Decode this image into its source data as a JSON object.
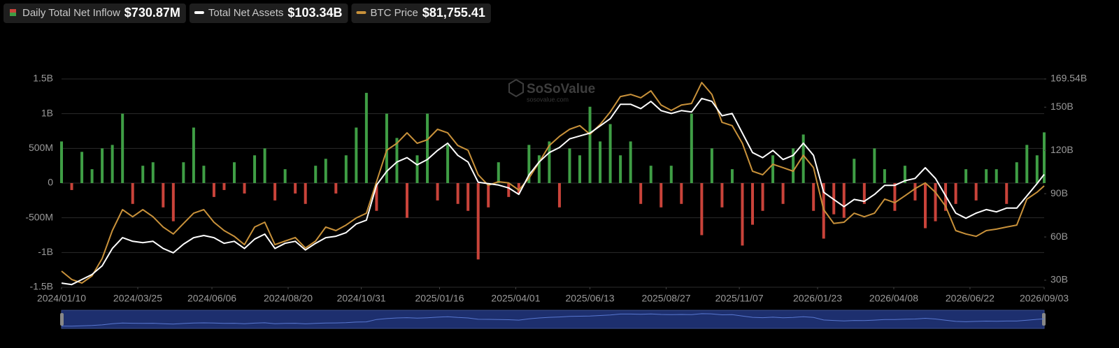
{
  "chart_data": {
    "type": "combo",
    "watermark": {
      "name": "SoSoValue",
      "site": "sosovalue.com"
    },
    "x": [
      "2024/01/10",
      "2024/01/20",
      "2024/01/30",
      "2024/02/09",
      "2024/02/19",
      "2024/02/29",
      "2024/03/10",
      "2024/03/20",
      "2024/03/30",
      "2024/04/09",
      "2024/04/19",
      "2024/04/29",
      "2024/05/09",
      "2024/05/19",
      "2024/05/29",
      "2024/06/08",
      "2024/06/18",
      "2024/06/28",
      "2024/07/08",
      "2024/07/18",
      "2024/07/28",
      "2024/08/07",
      "2024/08/17",
      "2024/08/27",
      "2024/09/06",
      "2024/09/16",
      "2024/09/26",
      "2024/10/06",
      "2024/10/16",
      "2024/10/26",
      "2024/11/05",
      "2024/11/15",
      "2024/11/25",
      "2024/12/05",
      "2024/12/15",
      "2024/12/25",
      "2025/01/04",
      "2025/01/14",
      "2025/01/24",
      "2025/02/03",
      "2025/02/13",
      "2025/02/23",
      "2025/03/05",
      "2025/03/15",
      "2025/03/25",
      "2025/04/04",
      "2025/04/14",
      "2025/04/24",
      "2025/05/04",
      "2025/05/14",
      "2025/05/24",
      "2025/06/03",
      "2025/06/13",
      "2025/06/23",
      "2025/07/03",
      "2025/07/13",
      "2025/07/23",
      "2025/08/02",
      "2025/08/12",
      "2025/08/22",
      "2025/09/01",
      "2025/09/11",
      "2025/09/21",
      "2025/10/01",
      "2025/10/11",
      "2025/10/21",
      "2025/10/31",
      "2025/11/10",
      "2025/11/20",
      "2025/11/30",
      "2025/12/10",
      "2025/12/20",
      "2025/12/30",
      "2026/01/09",
      "2026/01/19",
      "2026/01/29",
      "2026/02/08",
      "2026/02/18",
      "2026/02/28",
      "2026/03/10",
      "2026/03/20",
      "2026/03/30",
      "2026/04/09",
      "2026/04/19",
      "2026/04/29",
      "2026/05/09",
      "2026/05/19",
      "2026/05/29",
      "2026/06/08",
      "2026/06/18",
      "2026/06/28",
      "2026/07/08",
      "2026/07/18",
      "2026/07/28",
      "2026/08/07",
      "2026/08/17",
      "2026/08/27",
      "2026/09/03"
    ],
    "xlim": [
      "2024/01/10",
      "2026/09/03"
    ],
    "xticks": [
      "2024/01/10",
      "2024/03/25",
      "2024/06/06",
      "2024/08/20",
      "2024/10/31",
      "2025/01/16",
      "2025/04/01",
      "2025/06/13",
      "2025/08/27",
      "2025/11/07",
      "2026/01/23",
      "2026/04/08",
      "2026/06/22",
      "2026/09/03"
    ],
    "ylim": [
      -1500000000,
      1500000000
    ],
    "yticks": [
      {
        "value": 1500000000,
        "label": "1.5B"
      },
      {
        "value": 1000000000,
        "label": "1B"
      },
      {
        "value": 500000000,
        "label": "500M"
      },
      0,
      {
        "value": -500000000,
        "label": "-500M"
      },
      {
        "value": -1000000000,
        "label": "-1B"
      },
      {
        "value": -1500000000,
        "label": "-1.5B"
      }
    ],
    "y2lim": [
      25.16,
      169.54
    ],
    "y2ticks": [
      {
        "value": 169.54,
        "label": "169.54B"
      },
      {
        "value": 150,
        "label": "150B"
      },
      {
        "value": 120,
        "label": "120B"
      },
      {
        "value": 90,
        "label": "90B"
      },
      {
        "value": 60,
        "label": "60B"
      },
      {
        "value": 30,
        "label": "30B"
      }
    ],
    "y3lim": [
      39260,
      126590
    ],
    "grid": true,
    "series": [
      {
        "name": "Daily Total Net Inflow",
        "type": "bar",
        "current_label": "$730.87M",
        "color": "#3f9e45",
        "negative_color": "#c9433a",
        "values": [
          600000000,
          -100000000,
          450000000,
          200000000,
          500000000,
          550000000,
          1000000000,
          -300000000,
          250000000,
          300000000,
          -350000000,
          -550000000,
          300000000,
          800000000,
          250000000,
          -200000000,
          -100000000,
          300000000,
          -150000000,
          400000000,
          500000000,
          -250000000,
          200000000,
          -150000000,
          -300000000,
          250000000,
          350000000,
          -150000000,
          400000000,
          800000000,
          1300000000,
          -400000000,
          1000000000,
          650000000,
          -500000000,
          400000000,
          1000000000,
          -250000000,
          550000000,
          -300000000,
          -400000000,
          -1100000000,
          -350000000,
          300000000,
          -200000000,
          -150000000,
          550000000,
          400000000,
          600000000,
          -350000000,
          500000000,
          400000000,
          1100000000,
          600000000,
          850000000,
          400000000,
          600000000,
          -300000000,
          250000000,
          -350000000,
          250000000,
          -300000000,
          1000000000,
          -750000000,
          500000000,
          -350000000,
          200000000,
          -900000000,
          -600000000,
          -400000000,
          400000000,
          -300000000,
          500000000,
          700000000,
          -400000000,
          -800000000,
          -450000000,
          -500000000,
          350000000,
          -300000000,
          500000000,
          200000000,
          -400000000,
          250000000,
          -250000000,
          -650000000,
          -550000000,
          -400000000,
          -300000000,
          200000000,
          -250000000,
          200000000,
          200000000,
          -300000000,
          300000000,
          550000000,
          400000000,
          730870000
        ]
      },
      {
        "name": "Total Net Assets",
        "type": "line",
        "axis": "y2",
        "current_label": "$103.34B",
        "color": "#ffffff",
        "values": [
          28,
          27,
          30.5,
          34,
          40,
          52,
          59.5,
          57,
          56,
          57,
          52,
          49,
          55,
          59.5,
          61,
          59.5,
          55.6,
          57,
          52,
          58.5,
          62,
          52,
          55.6,
          57,
          51,
          55.6,
          59.5,
          60.5,
          63,
          69,
          71.6,
          96,
          105.5,
          112,
          115,
          110,
          113.7,
          120,
          125,
          116.6,
          112,
          98,
          97,
          96,
          94,
          89.5,
          103,
          112,
          118.5,
          122,
          128,
          130,
          132,
          137,
          142,
          152,
          152,
          149,
          154,
          147.6,
          145.6,
          147.6,
          146.6,
          156,
          154,
          144,
          145.6,
          132,
          118.5,
          115,
          120,
          113.7,
          116.6,
          125,
          116.6,
          91,
          86,
          81,
          86,
          84.7,
          89.5,
          95.8,
          95.8,
          99,
          100.6,
          108,
          100.6,
          88.5,
          76.5,
          73,
          76.5,
          79,
          77.4,
          80,
          80,
          88.5,
          97,
          103.34
        ]
      },
      {
        "name": "BTC Price",
        "type": "line",
        "axis": "y3",
        "current_label": "$81,755.41",
        "color": "#c8913a",
        "values": [
          46000,
          42500,
          41000,
          44000,
          51300,
          63000,
          71800,
          68800,
          71800,
          68800,
          64500,
          61600,
          66000,
          70300,
          71800,
          66500,
          63000,
          60600,
          57100,
          64500,
          66500,
          57100,
          58600,
          60100,
          55700,
          58600,
          64500,
          63000,
          65300,
          68300,
          70300,
          83500,
          96700,
          99600,
          104000,
          99600,
          101100,
          105500,
          104000,
          98700,
          96700,
          86400,
          82000,
          83500,
          83000,
          80000,
          85000,
          91700,
          98700,
          102500,
          105500,
          107000,
          103400,
          107500,
          112800,
          119200,
          120100,
          118700,
          121600,
          115700,
          113400,
          115700,
          116300,
          125100,
          120100,
          108400,
          107000,
          99600,
          87900,
          86400,
          90800,
          89400,
          87900,
          94600,
          89400,
          71800,
          66000,
          66500,
          70300,
          68800,
          70300,
          76200,
          74700,
          77600,
          80600,
          83000,
          79100,
          73200,
          63000,
          61600,
          60600,
          63000,
          63600,
          64500,
          65300,
          76200,
          79100,
          81755.41
        ]
      }
    ]
  }
}
